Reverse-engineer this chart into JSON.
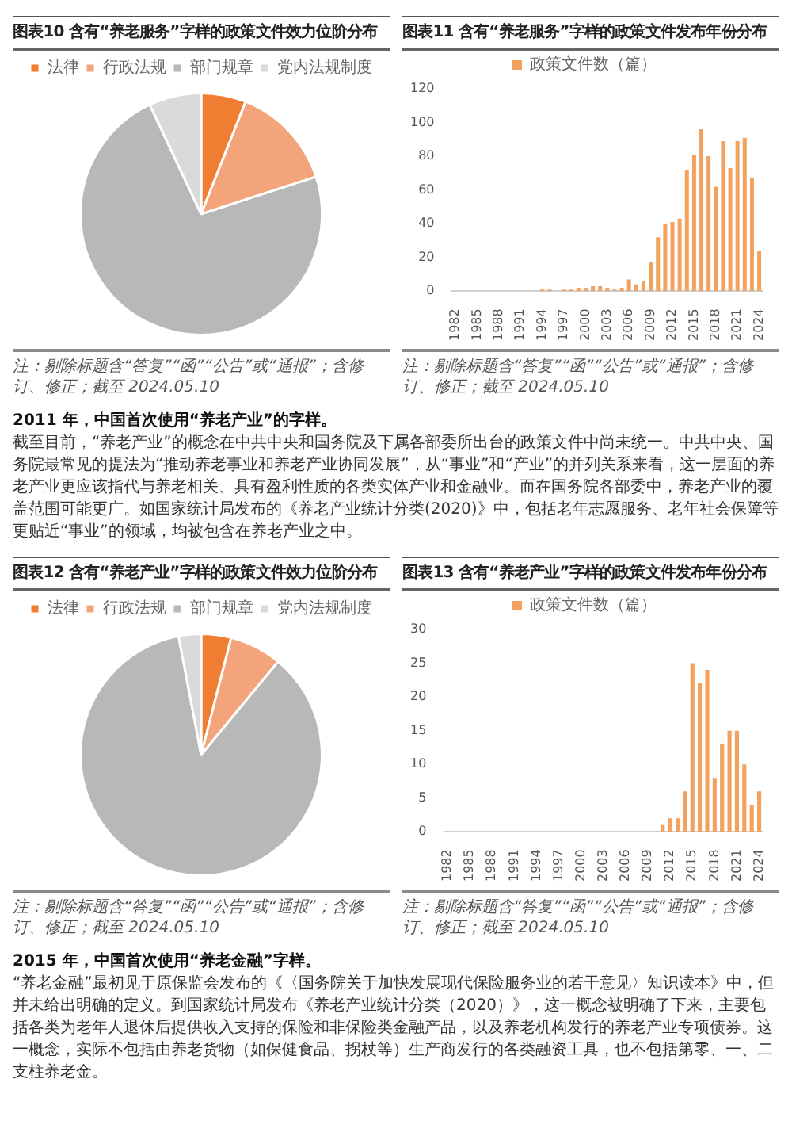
{
  "chart_data": [
    {
      "type": "pie",
      "title": "图表10 含有“养老服务”字样的政策文件效力位阶分布",
      "categories": [
        "法律",
        "行政法规",
        "部门规章",
        "党内法规制度"
      ],
      "values": [
        6,
        14,
        73,
        7
      ],
      "colors": [
        "#ef7d32",
        "#f3a47a",
        "#b8b8b8",
        "#dadada"
      ],
      "legend": "top",
      "annotations": [
        "注：剔除标题含“答复”“函”“公告”或“通报”；含修订、修正；截至 2024.05.10"
      ]
    },
    {
      "type": "bar",
      "title": "图表11 含有“养老服务”字样的政策文件发布年份分布",
      "categories": [
        "1982",
        null,
        null,
        "1985",
        null,
        null,
        "1988",
        null,
        null,
        "1991",
        null,
        null,
        "1994",
        null,
        null,
        "1997",
        null,
        null,
        "2000",
        null,
        null,
        "2003",
        null,
        null,
        "2006",
        null,
        null,
        "2009",
        null,
        null,
        "2012",
        null,
        null,
        "2015",
        null,
        null,
        "2018",
        null,
        null,
        "2021",
        null,
        null,
        "2024"
      ],
      "series": [
        {
          "name": "政策文件数（篇）",
          "color": "#f2a15f",
          "values": [
            0,
            0,
            0,
            0,
            0,
            0,
            0,
            0,
            0,
            0,
            0,
            0,
            1,
            1,
            0,
            1,
            1,
            2,
            2,
            3,
            3,
            2,
            1,
            2,
            7,
            4,
            6,
            17,
            32,
            40,
            41,
            43,
            72,
            81,
            96,
            80,
            62,
            89,
            73,
            89,
            91,
            67,
            24
          ]
        }
      ],
      "ylim": [
        0,
        120
      ],
      "yticks": [
        0,
        20,
        40,
        60,
        80,
        100,
        120
      ],
      "legend": "top",
      "annotations": [
        "注：剔除标题含“答复”“函”“公告”或“通报”；含修订、修正；截至 2024.05.10"
      ]
    },
    {
      "type": "other",
      "title": "2011 年，中国首次使用“养老产业”的字样。",
      "annotations": [
        "截至目前，“养老产业”的概念在中共中央和国务院及下属各部委所出台的政策文件中尚未统一。中共中央、国务院最常见的提法为“推动养老事业和养老产业协同发展”，从“事业”和“产业”的并列关系来看，这一层面的养老产业更应该指代与养老相关、具有盈利性质的各类实体产业和金融业。而在国务院各部委中，养老产业的覆盖范围可能更广。如国家统计局发布的《养老产业统计分类(2020)》中，包括老年志愿服务、老年社会保障等更贴近“事业”的领域，均被包含在养老产业之中。"
      ]
    },
    {
      "type": "pie",
      "title": "图表12 含有“养老产业”字样的政策文件效力位阶分布",
      "categories": [
        "法律",
        "行政法规",
        "部门规章",
        "党内法规制度"
      ],
      "values": [
        4,
        7,
        86,
        3
      ],
      "colors": [
        "#ef7d32",
        "#f3a47a",
        "#b8b8b8",
        "#dadada"
      ],
      "legend": "top",
      "annotations": [
        "注：剔除标题含“答复”“函”“公告”或“通报”；含修订、修正；截至 2024.05.10"
      ]
    },
    {
      "type": "bar",
      "title": "图表13 含有“养老产业”字样的政策文件发布年份分布",
      "categories": [
        "1982",
        null,
        null,
        "1985",
        null,
        null,
        "1988",
        null,
        null,
        "1991",
        null,
        null,
        "1994",
        null,
        null,
        "1997",
        null,
        null,
        "2000",
        null,
        null,
        "2003",
        null,
        null,
        "2006",
        null,
        null,
        "2009",
        null,
        null,
        "2012",
        null,
        null,
        "2015",
        null,
        null,
        "2018",
        null,
        null,
        "2021",
        null,
        null,
        "2024"
      ],
      "series": [
        {
          "name": "政策文件数（篇）",
          "color": "#f2a15f",
          "values": [
            0,
            0,
            0,
            0,
            0,
            0,
            0,
            0,
            0,
            0,
            0,
            0,
            0,
            0,
            0,
            0,
            0,
            0,
            0,
            0,
            0,
            0,
            0,
            0,
            0,
            0,
            0,
            0,
            0,
            1,
            2,
            2,
            6,
            25,
            22,
            24,
            8,
            13,
            15,
            15,
            10,
            4,
            6
          ]
        }
      ],
      "ylim": [
        0,
        30
      ],
      "yticks": [
        0,
        5,
        10,
        15,
        20,
        25,
        30
      ],
      "legend": "top",
      "annotations": [
        "注：剔除标题含“答复”“函”“公告”或“通报”；含修订、修正；截至 2024.05.10"
      ]
    },
    {
      "type": "other",
      "title": "2015 年，中国首次使用“养老金融”字样。",
      "annotations": [
        "“养老金融”最初见于原保监会发布的《〈国务院关于加快发展现代保险服务业的若干意见〉知识读本》中，但并未给出明确的定义。到国家统计局发布《养老产业统计分类（2020）》，这一概念被明确了下来，主要包括各类为老年人退休后提供收入支持的保险和非保险类金融产品，以及养老机构发行的养老产业专项债券。这一概念，实际不包括由养老货物（如保健食品、拐杖等）生产商发行的各类融资工具，也不包括第零、一、二支柱养老金。"
      ]
    }
  ]
}
